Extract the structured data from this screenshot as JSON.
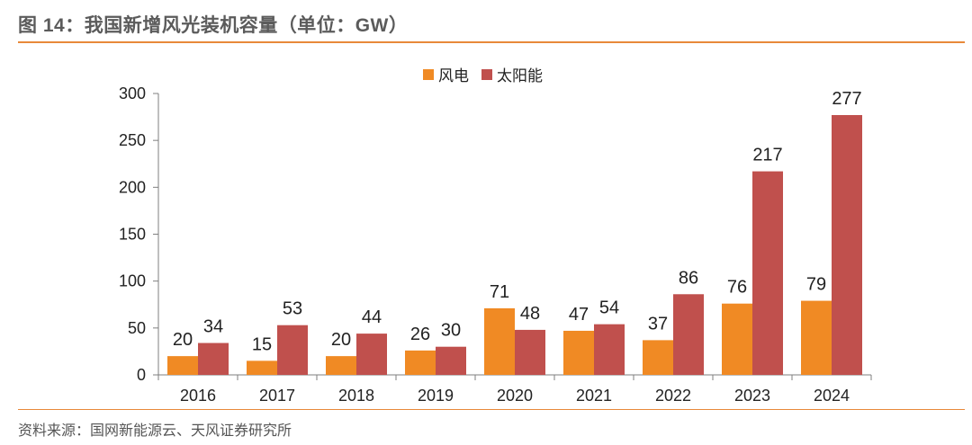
{
  "figure": {
    "title": "图 14：我国新增风光装机容量（单位：GW）",
    "source": "资料来源：国网新能源云、天风证券研究所"
  },
  "colors": {
    "wind": "#f08a24",
    "solar": "#c0504d",
    "axis": "#7f7f7f",
    "rule": "#e8893a"
  },
  "chart_data": {
    "type": "bar",
    "categories": [
      "2016",
      "2017",
      "2018",
      "2019",
      "2020",
      "2021",
      "2022",
      "2023",
      "2024"
    ],
    "series": [
      {
        "name": "风电",
        "values": [
          20,
          15,
          20,
          26,
          71,
          47,
          37,
          76,
          79
        ]
      },
      {
        "name": "太阳能",
        "values": [
          34,
          53,
          44,
          30,
          48,
          54,
          86,
          217,
          277
        ]
      }
    ],
    "ylim": [
      0,
      300
    ],
    "yticks": [
      "0",
      "50",
      "100",
      "150",
      "200",
      "250",
      "300"
    ],
    "legend_position": "top-center",
    "grid": false
  }
}
